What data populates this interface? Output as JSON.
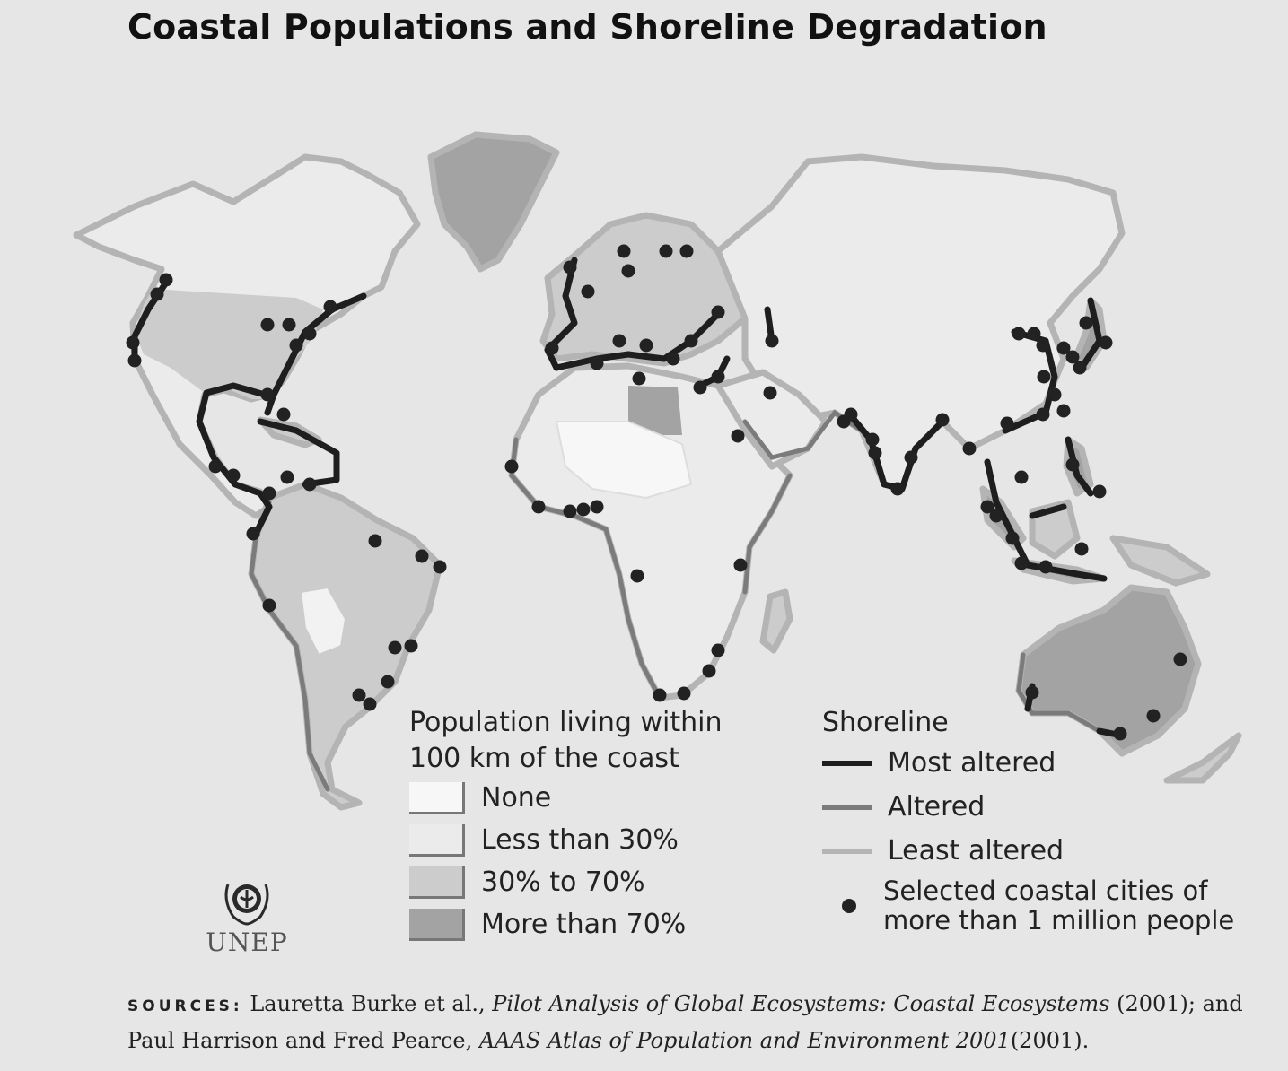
{
  "title": "Coastal Populations and Shoreline Degradation",
  "colors": {
    "background": "#e6e6e6",
    "none": "#f7f7f7",
    "less_than_30": "#ebebeb",
    "thirty_to_70": "#cccccc",
    "more_than_70": "#a3a3a3",
    "most_altered": "#1e1e1e",
    "altered": "#7b7b7b",
    "least_altered": "#b4b4b4",
    "city": "#222222"
  },
  "legend_population": {
    "title_line1": "Population living within",
    "title_line2": "100 km of the coast",
    "items": [
      {
        "label": "None",
        "color_key": "none"
      },
      {
        "label": "Less than 30%",
        "color_key": "less_than_30"
      },
      {
        "label": "30% to 70%",
        "color_key": "thirty_to_70"
      },
      {
        "label": "More than 70%",
        "color_key": "more_than_70"
      }
    ]
  },
  "legend_shoreline": {
    "title": "Shoreline",
    "items": [
      {
        "label": "Most altered",
        "color_key": "most_altered"
      },
      {
        "label": "Altered",
        "color_key": "altered"
      },
      {
        "label": "Least altered",
        "color_key": "least_altered"
      }
    ],
    "city_line1": "Selected coastal cities of",
    "city_line2": "more than 1 million people"
  },
  "logo_text": "UNEP",
  "sources": {
    "label": "SOURCES:",
    "part1": " Lauretta Burke et al., ",
    "work1": "Pilot Analysis of Global Ecosystems: Coastal Ecosystems",
    "part2": " (2001); and",
    "part3": "Paul Harrison and Fred Pearce, ",
    "work2": "AAAS Atlas of Population and Environment 2001",
    "part4": "(2001)."
  }
}
